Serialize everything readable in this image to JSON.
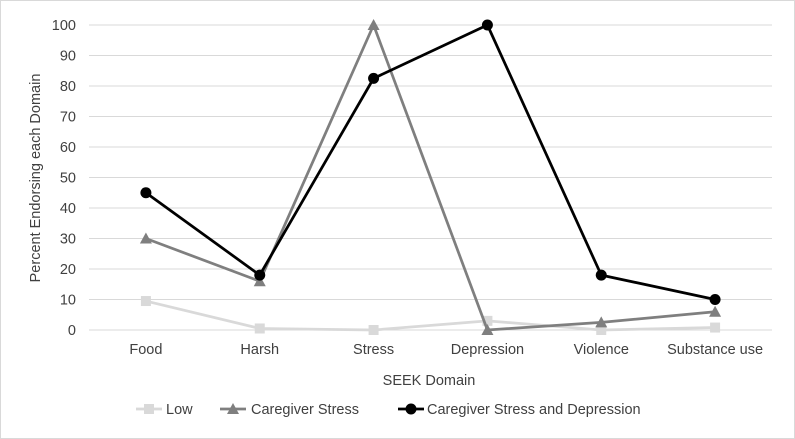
{
  "chart_data": {
    "type": "line",
    "title": "",
    "xlabel": "SEEK Domain",
    "ylabel": "Percent Endorsing each Domain",
    "categories": [
      "Food",
      "Harsh",
      "Stress",
      "Depression",
      "Violence",
      "Substance use"
    ],
    "ylim": [
      0,
      100
    ],
    "yticks": [
      0,
      10,
      20,
      30,
      40,
      50,
      60,
      70,
      80,
      90,
      100
    ],
    "grid": true,
    "legend_position": "bottom",
    "series": [
      {
        "name": "Low",
        "values": [
          9.5,
          0.5,
          0,
          3,
          0,
          0.8
        ],
        "color": "#d9d9d9",
        "marker": "square"
      },
      {
        "name": "Caregiver Stress",
        "values": [
          30,
          16,
          100,
          0,
          2.5,
          6
        ],
        "color": "#7f7f7f",
        "marker": "triangle"
      },
      {
        "name": "Caregiver Stress and Depression",
        "values": [
          45,
          18,
          82.5,
          100,
          18,
          10
        ],
        "color": "#000000",
        "marker": "circle"
      }
    ]
  }
}
